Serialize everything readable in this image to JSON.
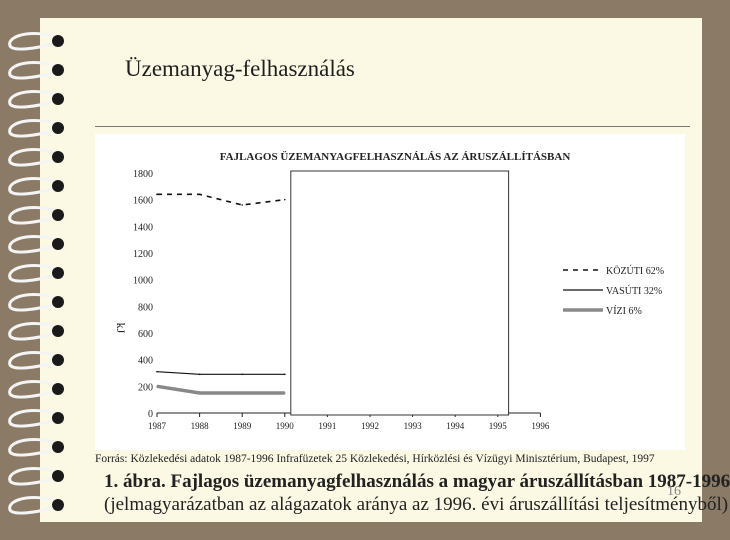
{
  "slide": {
    "title": "Üzemanyag-felhasználás",
    "source": "Forrás: Közlekedési adatok 1987-1996 Infrafüzetek 25 Közlekedési, Hírközlési és Vízügyi Minisztérium, Budapest, 1997",
    "caption_line1": "1. ábra.  Fajlagos üzemanyagfelhasználás a magyar áruszállításban 1987-1996",
    "caption_line2": "(jelmagyarázatban az alágazatok aránya az 1996. évi áruszállítási teljesítményből)",
    "page_number": "16"
  },
  "chart_data": {
    "type": "line",
    "title": "FAJLAGOS ÜZEMANYAGFELHASZNÁLÁS AZ ÁRUSZÁLLÍTÁSBAN",
    "ylabel": "kJ",
    "xlabel": "",
    "categories": [
      "1987",
      "1988",
      "1989",
      "1990",
      "1991",
      "1992",
      "1993",
      "1994",
      "1995",
      "1996"
    ],
    "ylim": [
      0,
      1800
    ],
    "yticks": [
      0,
      200,
      400,
      600,
      800,
      1000,
      1200,
      1400,
      1600,
      1800
    ],
    "legend_position": "right",
    "series": [
      {
        "name": "KÖZÚTI 62%",
        "style": "dashed",
        "color": "#000000",
        "values": [
          1640,
          1640,
          1560,
          1600,
          null,
          null,
          null,
          null,
          null,
          null
        ]
      },
      {
        "name": "VASÚTI 32%",
        "style": "solid",
        "color": "#000000",
        "values": [
          310,
          290,
          290,
          290,
          null,
          null,
          null,
          null,
          null,
          null
        ]
      },
      {
        "name": "VÍZI 6%",
        "style": "thick",
        "color": "#888888",
        "values": [
          200,
          150,
          150,
          150,
          null,
          null,
          null,
          null,
          null,
          null
        ]
      }
    ]
  }
}
